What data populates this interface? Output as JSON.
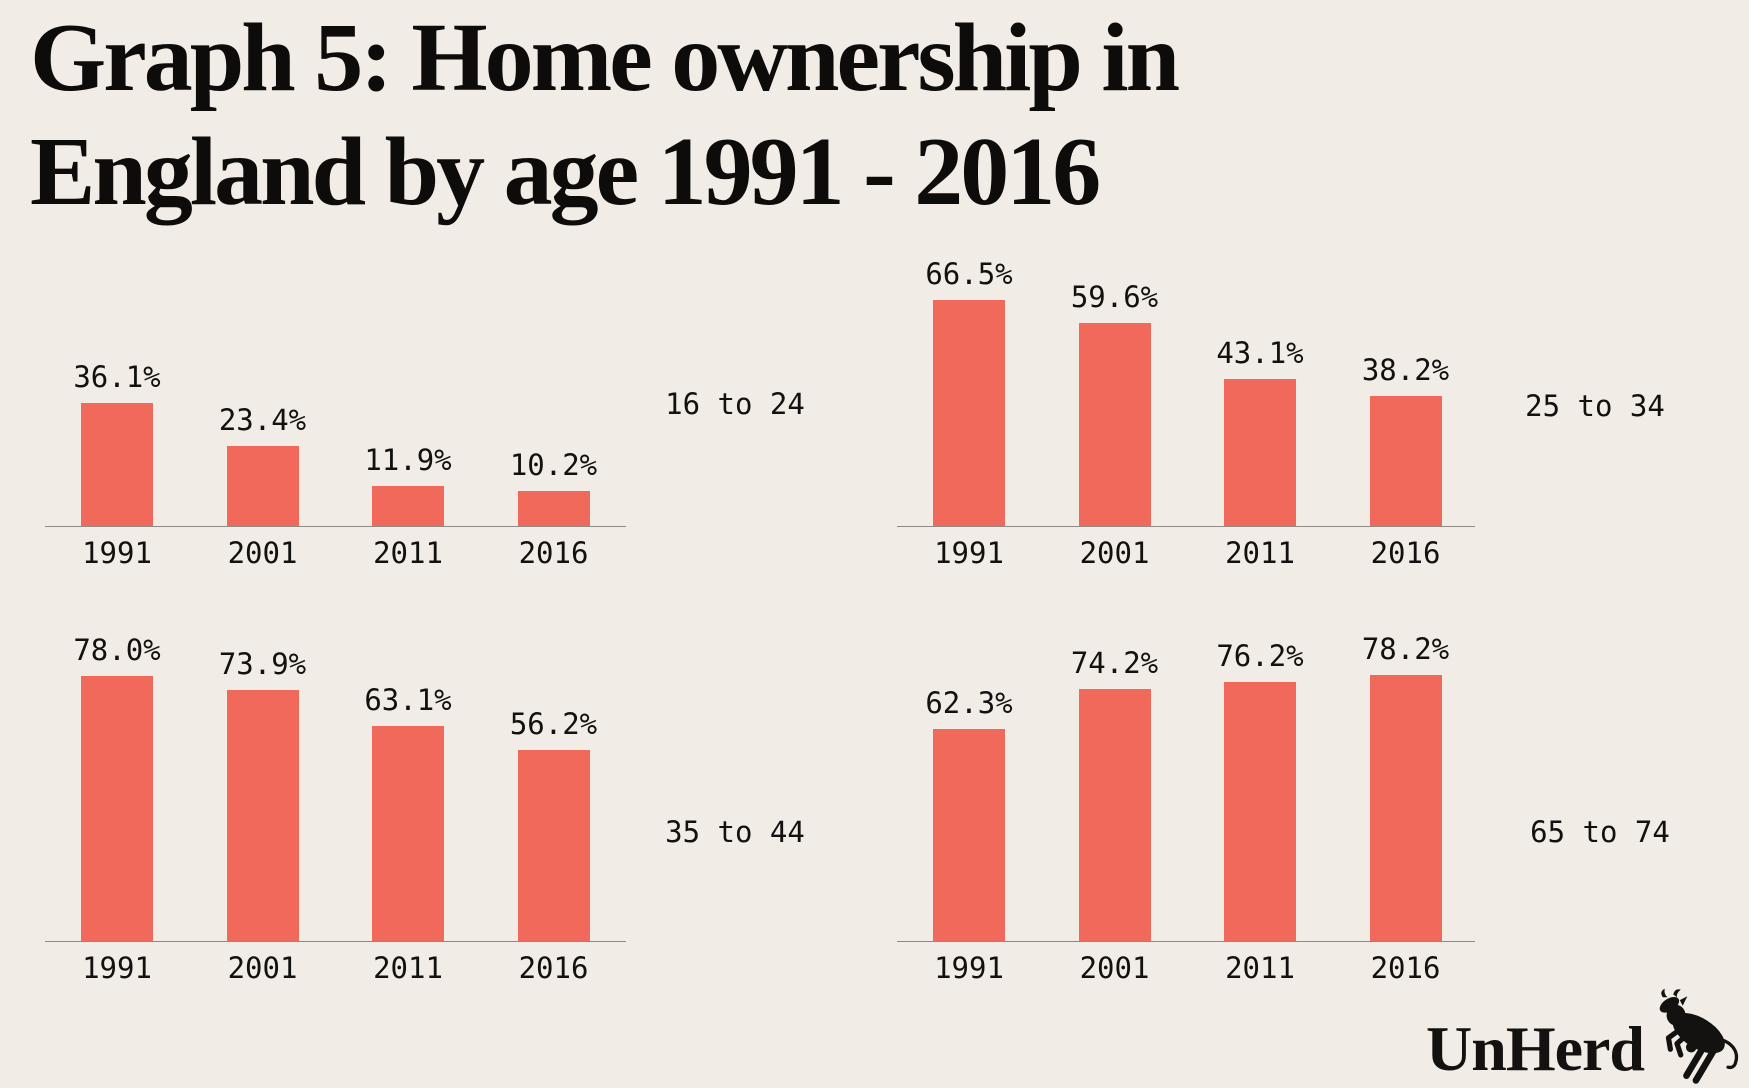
{
  "title": {
    "line1": "Graph 5: Home ownership in",
    "line2": "England by age 1991 - 2016"
  },
  "colors": {
    "background": "#f1ede6",
    "bar": "#f0695a",
    "text": "#12110f",
    "axis_line": "#8e8a84"
  },
  "chart_data": [
    {
      "type": "bar",
      "group": "16 to 24",
      "categories": [
        "1991",
        "2001",
        "2011",
        "2016"
      ],
      "values": [
        36.1,
        23.4,
        11.9,
        10.2
      ],
      "unit": "%",
      "ylim": [
        0,
        100
      ],
      "grid": false,
      "value_labels": [
        "36.1%",
        "23.4%",
        "11.9%",
        "10.2%"
      ]
    },
    {
      "type": "bar",
      "group": "25 to 34",
      "categories": [
        "1991",
        "2001",
        "2011",
        "2016"
      ],
      "values": [
        66.5,
        59.6,
        43.1,
        38.2
      ],
      "unit": "%",
      "ylim": [
        0,
        100
      ],
      "grid": false,
      "value_labels": [
        "66.5%",
        "59.6%",
        "43.1%",
        "38.2%"
      ]
    },
    {
      "type": "bar",
      "group": "35 to 44",
      "categories": [
        "1991",
        "2001",
        "2011",
        "2016"
      ],
      "values": [
        78.0,
        73.9,
        63.1,
        56.2
      ],
      "unit": "%",
      "ylim": [
        0,
        100
      ],
      "grid": false,
      "value_labels": [
        "78.0%",
        "73.9%",
        "63.1%",
        "56.2%"
      ]
    },
    {
      "type": "bar",
      "group": "65 to 74",
      "categories": [
        "1991",
        "2001",
        "2011",
        "2016"
      ],
      "values": [
        62.3,
        74.2,
        76.2,
        78.2
      ],
      "unit": "%",
      "ylim": [
        0,
        100
      ],
      "grid": false,
      "value_labels": [
        "62.3%",
        "74.2%",
        "76.2%",
        "78.2%"
      ]
    }
  ],
  "logo": {
    "text": "UnHerd",
    "icon": "rearing-cow-icon"
  }
}
